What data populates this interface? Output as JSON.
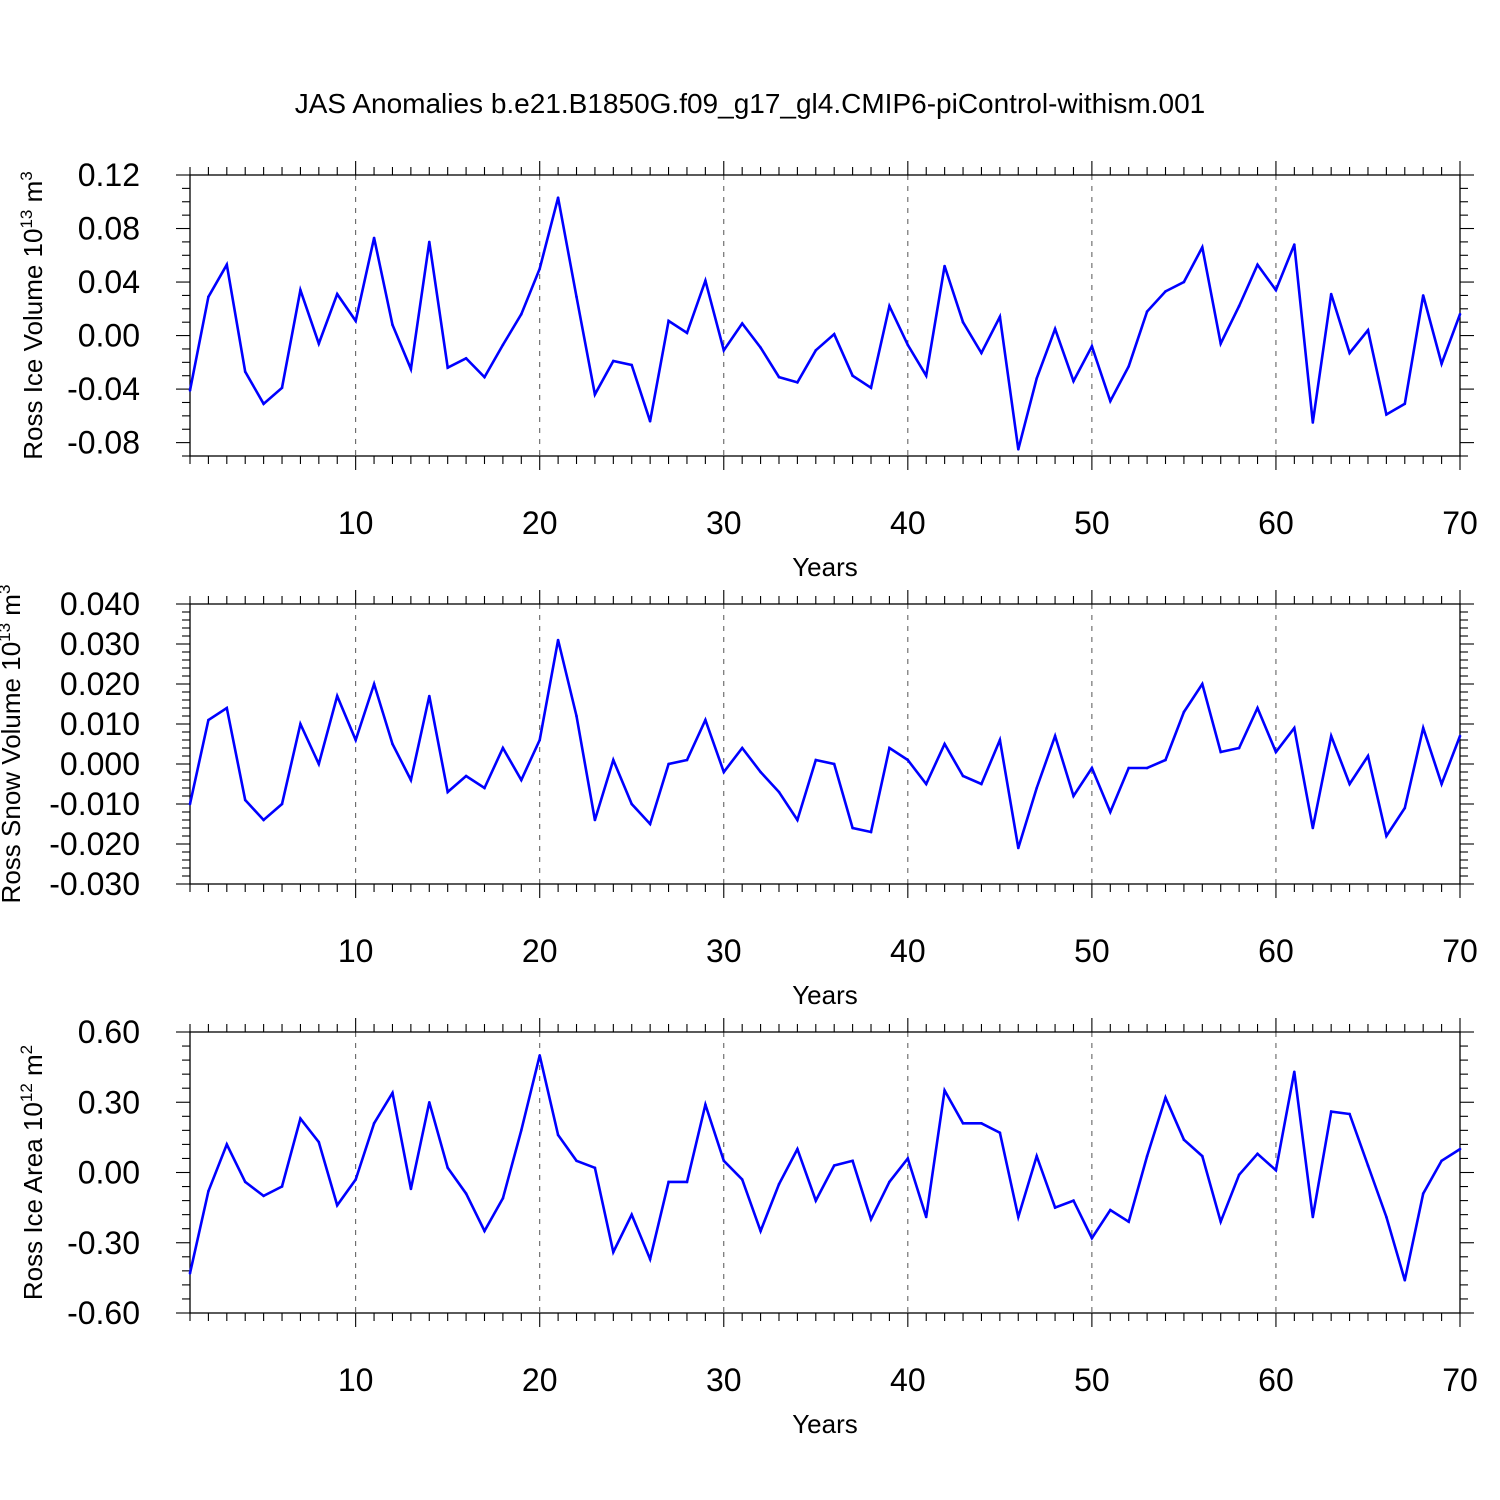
{
  "figure_title": "JAS Anomalies b.e21.B1850G.f09_g17_gl4.CMIP6-piControl-withism.001",
  "colors": {
    "line": "#0000ff",
    "axis": "#000000",
    "grid": "#555555",
    "background": "#ffffff"
  },
  "chart_data": [
    {
      "type": "line",
      "title": "JAS Anomalies b.e21.B1850G.f09_g17_gl4.CMIP6-piControl-withism.001",
      "xlabel": "Years",
      "ylabel": {
        "base": "Ross Ice Volume 10",
        "exponent": "13",
        "unit": " m",
        "unit_exponent": "3"
      },
      "xlim": [
        1,
        70
      ],
      "ylim": [
        -0.09,
        0.12
      ],
      "yticks": [
        -0.08,
        -0.04,
        0.0,
        0.04,
        0.08,
        0.12
      ],
      "ytick_labels": [
        "-0.08",
        "-0.04",
        "0.00",
        "0.04",
        "0.08",
        "0.12"
      ],
      "y_minor_step": 0.01,
      "xticks": [
        10,
        20,
        30,
        40,
        50,
        60,
        70
      ],
      "xtick_labels": [
        "10",
        "20",
        "30",
        "40",
        "50",
        "60",
        "70"
      ],
      "grid": "vertical dashed at major x ticks",
      "series": [
        {
          "name": "Ross Ice Volume",
          "x": [
            1,
            2,
            3,
            4,
            5,
            6,
            7,
            8,
            9,
            10,
            11,
            12,
            13,
            14,
            15,
            16,
            17,
            18,
            19,
            20,
            21,
            22,
            23,
            24,
            25,
            26,
            27,
            28,
            29,
            30,
            31,
            32,
            33,
            34,
            35,
            36,
            37,
            38,
            39,
            40,
            41,
            42,
            43,
            44,
            45,
            46,
            47,
            48,
            49,
            50,
            51,
            52,
            53,
            54,
            55,
            56,
            57,
            58,
            59,
            60,
            61,
            62,
            63,
            64,
            65,
            66,
            67,
            68,
            69,
            70
          ],
          "values": [
            -0.041,
            0.029,
            0.053,
            -0.027,
            -0.051,
            -0.039,
            0.034,
            -0.006,
            0.031,
            0.011,
            0.073,
            0.008,
            -0.025,
            0.07,
            -0.024,
            -0.017,
            -0.031,
            -0.007,
            0.016,
            0.05,
            0.103,
            0.029,
            -0.044,
            -0.019,
            -0.022,
            -0.064,
            0.011,
            0.002,
            0.041,
            -0.011,
            0.009,
            -0.009,
            -0.031,
            -0.035,
            -0.011,
            0.001,
            -0.03,
            -0.039,
            0.022,
            -0.007,
            -0.03,
            0.052,
            0.01,
            -0.013,
            0.014,
            -0.085,
            -0.032,
            0.005,
            -0.034,
            -0.008,
            -0.049,
            -0.023,
            0.018,
            0.033,
            0.04,
            0.066,
            -0.006,
            0.022,
            0.053,
            0.034,
            0.068,
            -0.065,
            0.031,
            -0.013,
            0.004,
            -0.059,
            -0.051,
            0.03,
            -0.021,
            0.016
          ]
        }
      ]
    },
    {
      "type": "line",
      "title": "",
      "xlabel": "Years",
      "ylabel": {
        "base": "Ross Snow Volume 10",
        "exponent": "13",
        "unit": " m",
        "unit_exponent": "3"
      },
      "xlim": [
        1,
        70
      ],
      "ylim": [
        -0.03,
        0.04
      ],
      "yticks": [
        -0.03,
        -0.02,
        -0.01,
        0.0,
        0.01,
        0.02,
        0.03,
        0.04
      ],
      "ytick_labels": [
        "-0.030",
        "-0.020",
        "-0.010",
        "0.000",
        "0.010",
        "0.020",
        "0.030",
        "0.040"
      ],
      "y_minor_step": 0.002,
      "xticks": [
        10,
        20,
        30,
        40,
        50,
        60,
        70
      ],
      "xtick_labels": [
        "10",
        "20",
        "30",
        "40",
        "50",
        "60",
        "70"
      ],
      "grid": "vertical dashed at major x ticks",
      "series": [
        {
          "name": "Ross Snow Volume",
          "x": [
            1,
            2,
            3,
            4,
            5,
            6,
            7,
            8,
            9,
            10,
            11,
            12,
            13,
            14,
            15,
            16,
            17,
            18,
            19,
            20,
            21,
            22,
            23,
            24,
            25,
            26,
            27,
            28,
            29,
            30,
            31,
            32,
            33,
            34,
            35,
            36,
            37,
            38,
            39,
            40,
            41,
            42,
            43,
            44,
            45,
            46,
            47,
            48,
            49,
            50,
            51,
            52,
            53,
            54,
            55,
            56,
            57,
            58,
            59,
            60,
            61,
            62,
            63,
            64,
            65,
            66,
            67,
            68,
            69,
            70
          ],
          "values": [
            -0.01,
            0.011,
            0.014,
            -0.009,
            -0.014,
            -0.01,
            0.01,
            0.0,
            0.017,
            0.006,
            0.02,
            0.005,
            -0.004,
            0.017,
            -0.007,
            -0.003,
            -0.006,
            0.004,
            -0.004,
            0.006,
            0.031,
            0.012,
            -0.014,
            0.001,
            -0.01,
            -0.015,
            0.0,
            0.001,
            0.011,
            -0.002,
            0.004,
            -0.002,
            -0.007,
            -0.014,
            0.001,
            0.0,
            -0.016,
            -0.017,
            0.004,
            0.001,
            -0.005,
            0.005,
            -0.003,
            -0.005,
            0.006,
            -0.021,
            -0.006,
            0.007,
            -0.008,
            -0.001,
            -0.012,
            -0.001,
            -0.001,
            0.001,
            0.013,
            0.02,
            0.003,
            0.004,
            0.014,
            0.003,
            0.009,
            -0.016,
            0.007,
            -0.005,
            0.002,
            -0.018,
            -0.011,
            0.009,
            -0.005,
            0.007
          ]
        }
      ]
    },
    {
      "type": "line",
      "title": "",
      "xlabel": "Years",
      "ylabel": {
        "base": "Ross Ice Area 10",
        "exponent": "12",
        "unit": " m",
        "unit_exponent": "2"
      },
      "xlim": [
        1,
        70
      ],
      "ylim": [
        -0.6,
        0.6
      ],
      "yticks": [
        -0.6,
        -0.3,
        0.0,
        0.3,
        0.6
      ],
      "ytick_labels": [
        "-0.60",
        "-0.30",
        "0.00",
        "0.30",
        "0.60"
      ],
      "y_minor_step": 0.06,
      "xticks": [
        10,
        20,
        30,
        40,
        50,
        60,
        70
      ],
      "xtick_labels": [
        "10",
        "20",
        "30",
        "40",
        "50",
        "60",
        "70"
      ],
      "grid": "vertical dashed at major x ticks",
      "series": [
        {
          "name": "Ross Ice Area",
          "x": [
            1,
            2,
            3,
            4,
            5,
            6,
            7,
            8,
            9,
            10,
            11,
            12,
            13,
            14,
            15,
            16,
            17,
            18,
            19,
            20,
            21,
            22,
            23,
            24,
            25,
            26,
            27,
            28,
            29,
            30,
            31,
            32,
            33,
            34,
            35,
            36,
            37,
            38,
            39,
            40,
            41,
            42,
            43,
            44,
            45,
            46,
            47,
            48,
            49,
            50,
            51,
            52,
            53,
            54,
            55,
            56,
            57,
            58,
            59,
            60,
            61,
            62,
            63,
            64,
            65,
            66,
            67,
            68,
            69,
            70
          ],
          "values": [
            -0.43,
            -0.08,
            0.12,
            -0.04,
            -0.1,
            -0.06,
            0.23,
            0.13,
            -0.14,
            -0.03,
            0.21,
            0.34,
            -0.07,
            0.3,
            0.02,
            -0.09,
            -0.25,
            -0.11,
            0.18,
            0.5,
            0.16,
            0.05,
            0.02,
            -0.34,
            -0.18,
            -0.37,
            -0.04,
            -0.04,
            0.29,
            0.05,
            -0.03,
            -0.25,
            -0.05,
            0.1,
            -0.12,
            0.03,
            0.05,
            -0.2,
            -0.04,
            0.06,
            -0.19,
            0.35,
            0.21,
            0.21,
            0.17,
            -0.19,
            0.07,
            -0.15,
            -0.12,
            -0.28,
            -0.16,
            -0.21,
            0.07,
            0.32,
            0.14,
            0.07,
            -0.21,
            -0.01,
            0.08,
            0.01,
            0.43,
            -0.19,
            0.26,
            0.25,
            0.03,
            -0.19,
            -0.46,
            -0.09,
            0.05,
            0.1
          ]
        }
      ]
    }
  ]
}
